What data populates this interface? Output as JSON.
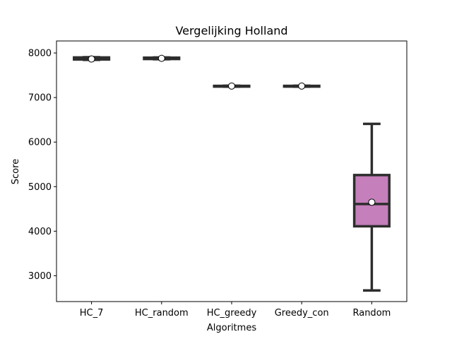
{
  "chart_data": {
    "type": "box",
    "title": "Vergelijking Holland",
    "xlabel": "Algoritmes",
    "ylabel": "Score",
    "ylim": [
      2420,
      8270
    ],
    "yticks": [
      3000,
      4000,
      5000,
      6000,
      7000,
      8000
    ],
    "grid": false,
    "categories": [
      "HC_7",
      "HC_random",
      "HC_greedy",
      "Greedy_con",
      "Random"
    ],
    "boxes": [
      {
        "category": "HC_7",
        "whisker_low": 7845,
        "q1": 7855,
        "median": 7870,
        "q3": 7900,
        "whisker_high": 7905,
        "mean": 7865
      },
      {
        "category": "HC_random",
        "whisker_low": 7860,
        "q1": 7865,
        "median": 7880,
        "q3": 7895,
        "whisker_high": 7900,
        "mean": 7880
      },
      {
        "category": "HC_greedy",
        "whisker_low": 7245,
        "q1": 7250,
        "median": 7255,
        "q3": 7262,
        "whisker_high": 7265,
        "mean": 7258
      },
      {
        "category": "Greedy_con",
        "whisker_low": 7245,
        "q1": 7250,
        "median": 7255,
        "q3": 7262,
        "whisker_high": 7265,
        "mean": 7258
      },
      {
        "category": "Random",
        "whisker_low": 2670,
        "q1": 4110,
        "median": 4610,
        "q3": 5260,
        "whisker_high": 6410,
        "mean": 4650
      }
    ],
    "colors": {
      "box_fill_random": "#c57fbb",
      "box_fill_default": "#c57fbb",
      "box_edge": "#2d2d2d",
      "mean_marker_fill": "#ffffff",
      "mean_marker_edge": "#000000"
    }
  }
}
